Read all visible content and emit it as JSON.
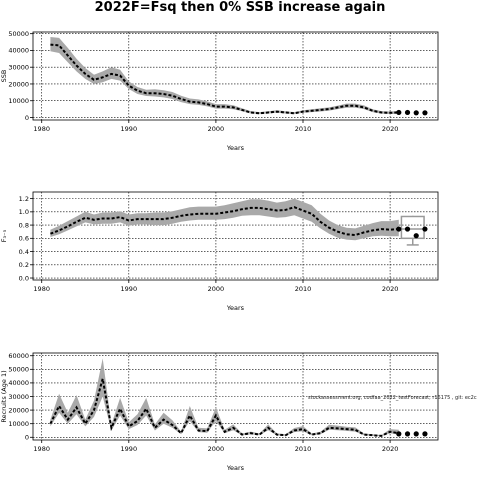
{
  "title": "2022F=Fsq then 0% SSB increase again",
  "watermark": "stockassessment.org, codfaa_2022_testForecast, r16175 , git: ec2c",
  "chart_data": [
    {
      "id": "ssb",
      "type": "line",
      "ylabel": "SSB",
      "xlabel": "Years",
      "xlim": [
        1979,
        2025.5
      ],
      "ylim": [
        -1500,
        51000
      ],
      "xticks": [
        1980,
        1990,
        2000,
        2010,
        2020
      ],
      "yticks": [
        0,
        10000,
        20000,
        30000,
        40000,
        50000
      ],
      "ytick_labels": [
        "0",
        "10000",
        "20000",
        "30000",
        "40000",
        "50000"
      ],
      "grid": true,
      "series": [
        {
          "x": [
            1981,
            1982,
            1983,
            1984,
            1985,
            1986,
            1987,
            1988,
            1989,
            1990,
            1991,
            1992,
            1993,
            1994,
            1995,
            1996,
            1997,
            1998,
            1999,
            2000,
            2001,
            2002,
            2003,
            2004,
            2005,
            2006,
            2007,
            2008,
            2009,
            2010,
            2011,
            2012,
            2013,
            2014,
            2015,
            2016,
            2017,
            2018,
            2019,
            2020,
            2021
          ],
          "y": [
            43500,
            43000,
            37000,
            31000,
            26000,
            22500,
            24000,
            26000,
            25000,
            19000,
            16000,
            14500,
            14500,
            14000,
            13000,
            11000,
            9500,
            9000,
            8000,
            6500,
            6500,
            6000,
            4500,
            3000,
            2500,
            3000,
            3500,
            3000,
            2500,
            3500,
            4000,
            4500,
            5000,
            6000,
            7000,
            7000,
            6000,
            4000,
            3000,
            2800,
            3000
          ],
          "lo": [
            39500,
            38500,
            33000,
            27500,
            23000,
            20000,
            21000,
            23000,
            22000,
            17000,
            14000,
            12800,
            12500,
            12000,
            11000,
            9200,
            8000,
            7500,
            6600,
            5300,
            5300,
            4900,
            3700,
            2400,
            2000,
            2400,
            2800,
            2400,
            2000,
            2800,
            3200,
            3600,
            4100,
            5000,
            5800,
            5900,
            5000,
            3200,
            2300,
            2100,
            2200
          ],
          "hi": [
            48000,
            47500,
            41500,
            35000,
            29500,
            25500,
            27500,
            30000,
            28500,
            21500,
            18200,
            16500,
            16800,
            16200,
            15200,
            13000,
            11300,
            10800,
            9600,
            8000,
            8000,
            7300,
            5500,
            3800,
            3200,
            3700,
            4300,
            3700,
            3200,
            4300,
            4900,
            5500,
            6000,
            7100,
            8300,
            8300,
            7200,
            4900,
            3800,
            3600,
            3900
          ]
        }
      ],
      "forecast": {
        "x": [
          2021,
          2022,
          2023,
          2024
        ],
        "y": [
          3000,
          3000,
          2800,
          2800
        ]
      }
    },
    {
      "id": "fbar",
      "type": "line",
      "ylabel": "F₃₋₅",
      "xlabel": "Years",
      "xlim": [
        1979,
        2025.5
      ],
      "ylim": [
        -0.03,
        1.3
      ],
      "xticks": [
        1980,
        1990,
        2000,
        2010,
        2020
      ],
      "yticks": [
        0,
        0.2,
        0.4,
        0.6,
        0.8,
        1.0,
        1.2
      ],
      "ytick_labels": [
        "0.0",
        "0.2",
        "0.4",
        "0.6",
        "0.8",
        "1.0",
        "1.2"
      ],
      "grid": true,
      "series": [
        {
          "x": [
            1981,
            1982,
            1983,
            1984,
            1985,
            1986,
            1987,
            1988,
            1989,
            1990,
            1991,
            1992,
            1993,
            1994,
            1995,
            1996,
            1997,
            1998,
            1999,
            2000,
            2001,
            2002,
            2003,
            2004,
            2005,
            2006,
            2007,
            2008,
            2009,
            2010,
            2011,
            2012,
            2013,
            2014,
            2015,
            2016,
            2017,
            2018,
            2019,
            2020,
            2021
          ],
          "y": [
            0.67,
            0.72,
            0.78,
            0.85,
            0.91,
            0.88,
            0.9,
            0.9,
            0.92,
            0.87,
            0.89,
            0.89,
            0.89,
            0.89,
            0.91,
            0.94,
            0.96,
            0.97,
            0.97,
            0.97,
            0.99,
            1.01,
            1.04,
            1.06,
            1.06,
            1.04,
            1.02,
            1.03,
            1.07,
            1.02,
            0.97,
            0.85,
            0.76,
            0.7,
            0.66,
            0.65,
            0.69,
            0.72,
            0.74,
            0.73,
            0.74
          ],
          "lo": [
            0.62,
            0.66,
            0.72,
            0.78,
            0.84,
            0.81,
            0.82,
            0.82,
            0.84,
            0.79,
            0.81,
            0.81,
            0.8,
            0.8,
            0.82,
            0.85,
            0.87,
            0.88,
            0.88,
            0.88,
            0.89,
            0.91,
            0.94,
            0.95,
            0.95,
            0.93,
            0.91,
            0.92,
            0.95,
            0.9,
            0.85,
            0.75,
            0.67,
            0.61,
            0.58,
            0.57,
            0.6,
            0.63,
            0.64,
            0.63,
            0.63
          ],
          "hi": [
            0.73,
            0.79,
            0.86,
            0.93,
            1.0,
            0.96,
            0.99,
            0.99,
            1.01,
            0.96,
            0.98,
            0.98,
            0.99,
            0.99,
            1.01,
            1.04,
            1.07,
            1.08,
            1.08,
            1.08,
            1.1,
            1.13,
            1.16,
            1.19,
            1.19,
            1.17,
            1.14,
            1.16,
            1.2,
            1.15,
            1.1,
            0.97,
            0.87,
            0.8,
            0.76,
            0.75,
            0.79,
            0.83,
            0.86,
            0.86,
            0.88
          ]
        }
      ],
      "forecast": {
        "x": [
          2021,
          2022,
          2023,
          2024
        ],
        "y": [
          0.74,
          0.74,
          0.64,
          0.74
        ],
        "box": {
          "x0": 2021.3,
          "x1": 2023.9,
          "median": 0.74,
          "q1": 0.6,
          "q3": 0.93,
          "low": 0.5,
          "high": 0.94
        }
      }
    },
    {
      "id": "recruits",
      "type": "line",
      "ylabel": "Recruits (Age 1)",
      "xlabel": "Years",
      "xlim": [
        1979,
        2025.5
      ],
      "ylim": [
        -2000,
        62000
      ],
      "xticks": [
        1980,
        1990,
        2000,
        2010,
        2020
      ],
      "yticks": [
        0,
        10000,
        20000,
        30000,
        40000,
        50000,
        60000
      ],
      "ytick_labels": [
        "0",
        "10000",
        "20000",
        "30000",
        "40000",
        "50000",
        "60000"
      ],
      "grid": true,
      "series": [
        {
          "x": [
            1981,
            1982,
            1983,
            1984,
            1985,
            1986,
            1987,
            1988,
            1989,
            1990,
            1991,
            1992,
            1993,
            1994,
            1995,
            1996,
            1997,
            1998,
            1999,
            2000,
            2001,
            2002,
            2003,
            2004,
            2005,
            2006,
            2007,
            2008,
            2009,
            2010,
            2011,
            2012,
            2013,
            2014,
            2015,
            2016,
            2017,
            2018,
            2019,
            2020,
            2021
          ],
          "y": [
            10000,
            23000,
            13000,
            22000,
            10000,
            20000,
            43000,
            7000,
            21000,
            8000,
            12000,
            21000,
            7000,
            13000,
            9000,
            3000,
            16000,
            5000,
            4500,
            16000,
            4000,
            7000,
            2000,
            3000,
            2000,
            7000,
            2000,
            1500,
            5000,
            6000,
            2000,
            3000,
            7000,
            6500,
            6000,
            5500,
            2000,
            1500,
            1000,
            4000,
            3000
          ],
          "lo": [
            8000,
            18000,
            10000,
            17000,
            8000,
            15000,
            30000,
            5000,
            16000,
            6000,
            9000,
            16000,
            5000,
            10000,
            7000,
            2200,
            12000,
            3800,
            3400,
            12000,
            3000,
            5200,
            1400,
            2200,
            1500,
            5200,
            1400,
            1000,
            3800,
            4500,
            1500,
            2300,
            5500,
            5100,
            4700,
            4200,
            1500,
            1000,
            700,
            3000,
            2000
          ],
          "hi": [
            13000,
            32000,
            18000,
            31000,
            13000,
            27000,
            58000,
            9500,
            29000,
            11000,
            17000,
            29000,
            9500,
            18000,
            12500,
            4200,
            23000,
            7000,
            6500,
            22000,
            5500,
            9500,
            2800,
            4200,
            2800,
            9500,
            2800,
            2200,
            6800,
            8200,
            2800,
            4100,
            9200,
            8600,
            7800,
            7300,
            2800,
            2200,
            1600,
            6000,
            5500
          ]
        }
      ],
      "forecast": {
        "x": [
          2021,
          2022,
          2023,
          2024
        ],
        "y": [
          2500,
          2500,
          2500,
          2500
        ]
      }
    }
  ]
}
